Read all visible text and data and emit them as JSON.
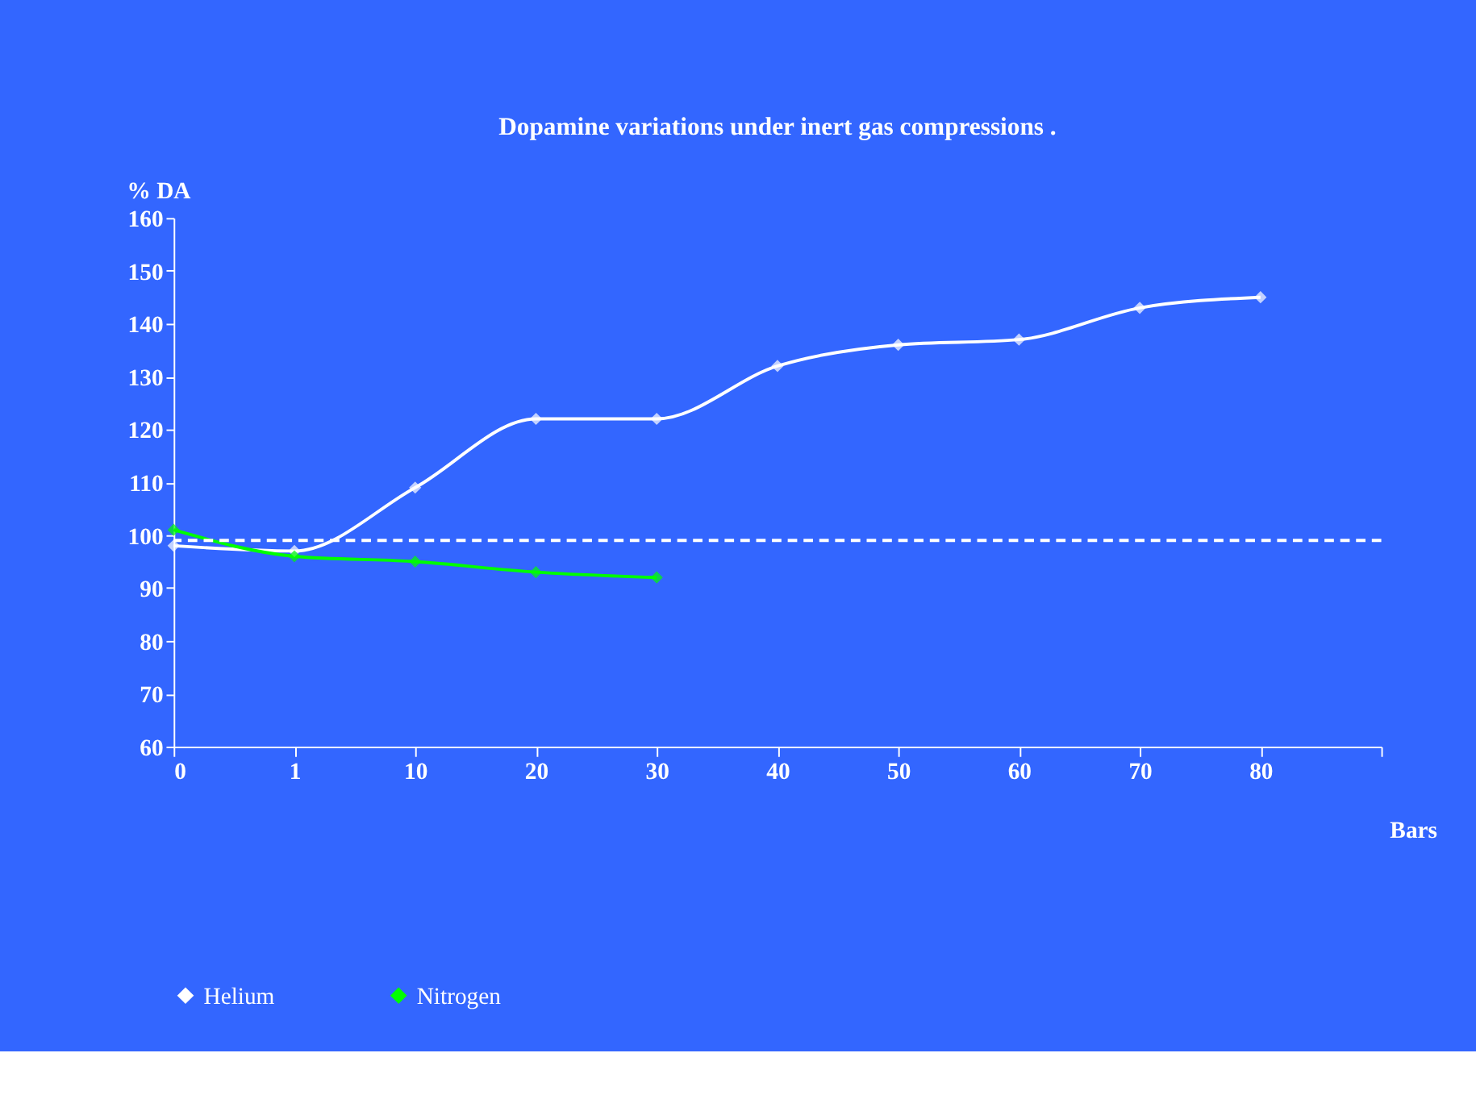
{
  "chart_data": {
    "type": "line",
    "title": "Dopamine variations under inert gas compressions .",
    "ylabel": "% DA",
    "xlabel": "Bars",
    "categories": [
      "0",
      "1",
      "10",
      "20",
      "30",
      "40",
      "50",
      "60",
      "70",
      "80",
      null
    ],
    "series": [
      {
        "name": "Helium",
        "color": "#ffffff",
        "values": [
          98,
          97,
          109,
          122,
          122,
          132,
          136,
          137,
          143,
          145,
          null
        ]
      },
      {
        "name": "Nitrogen",
        "color": "#00ff00",
        "values": [
          101,
          96,
          95,
          93,
          92,
          null,
          null,
          null,
          null,
          null,
          null
        ]
      }
    ],
    "ylim": [
      60,
      160
    ],
    "yticks": [
      60,
      70,
      80,
      90,
      100,
      110,
      120,
      130,
      140,
      150,
      160
    ],
    "ref_lines": [
      {
        "axis": "y",
        "value": 99,
        "color": "#ffffff",
        "line_style": "dashed"
      }
    ],
    "marker": "diamond",
    "line_style": "solid",
    "grid": false,
    "legend": "bottom left"
  }
}
